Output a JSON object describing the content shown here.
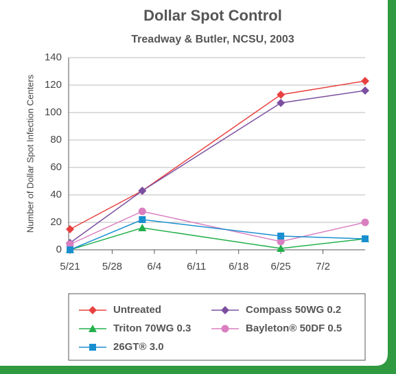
{
  "chart_data": {
    "type": "line",
    "title": "Dollar Spot Control",
    "subtitle": "Treadway & Butler, NCSU, 2003",
    "y_label": "Number of Dollar Spot Infection Centers",
    "x": [
      "5/21",
      "6/2",
      "6/25",
      "7/9"
    ],
    "xlim": [
      "5/21",
      "7/9"
    ],
    "xticks": [
      "5/21",
      "5/28",
      "6/4",
      "6/11",
      "6/18",
      "6/25",
      "7/2"
    ],
    "ylim": [
      0,
      140
    ],
    "yticks": [
      0,
      20,
      40,
      60,
      80,
      100,
      120,
      140
    ],
    "grid": true,
    "series": [
      {
        "name": "Untreated",
        "color": "#e8403f",
        "marker": "diamond",
        "values": [
          15,
          43,
          113,
          123
        ]
      },
      {
        "name": "Compass 50WG 0.2",
        "color": "#7b4fa0",
        "marker": "diamond",
        "values": [
          5,
          43,
          107,
          116
        ]
      },
      {
        "name": "Triton 70WG 0.3",
        "color": "#22b04b",
        "marker": "triangle",
        "values": [
          0,
          16,
          1,
          8
        ]
      },
      {
        "name": "Bayleton® 50DF 0.5",
        "color": "#d97fc0",
        "marker": "circle",
        "values": [
          4,
          28,
          6,
          20
        ]
      },
      {
        "name": "26GT® 3.0",
        "color": "#1a8fd0",
        "marker": "square",
        "values": [
          0,
          22,
          10,
          8
        ]
      }
    ]
  }
}
